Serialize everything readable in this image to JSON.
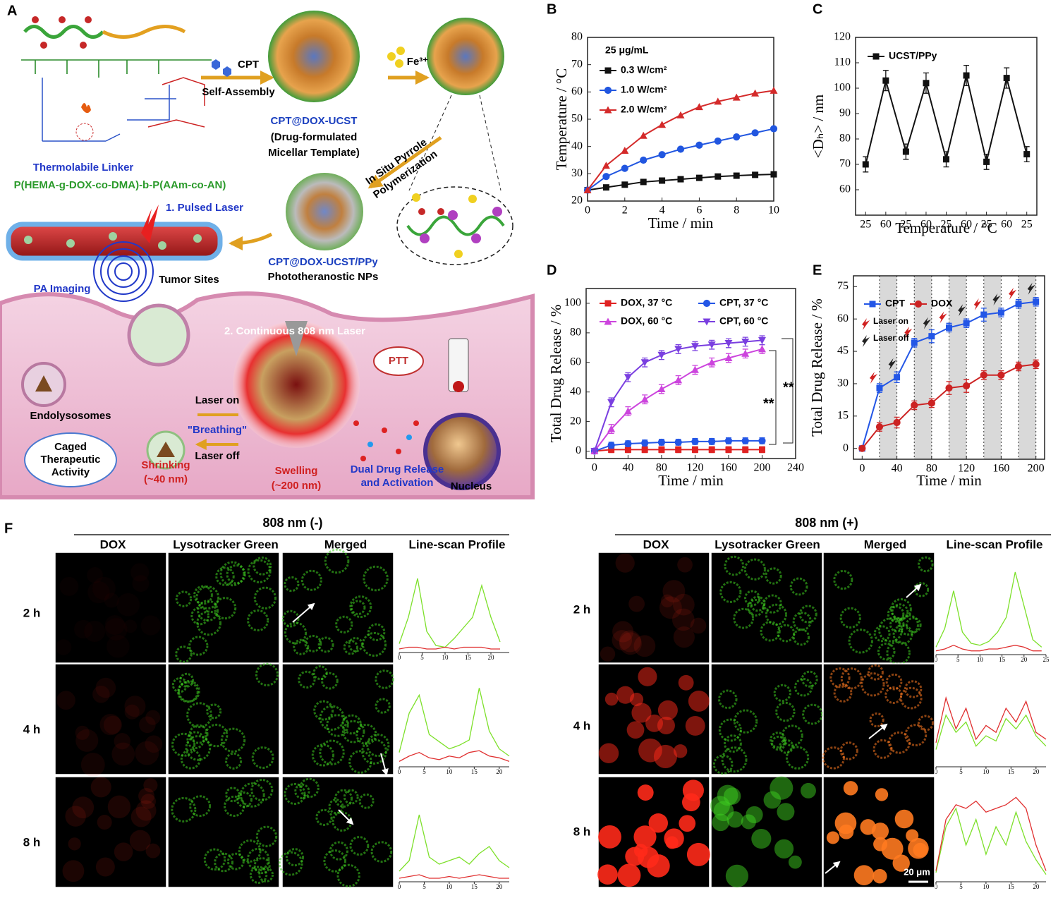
{
  "schematic": {
    "label": "A",
    "cpt": "CPT",
    "self_assembly": "Self-Assembly",
    "fe": "Fe³⁺",
    "micelle": [
      "CPT@DOX-UCST",
      "(Drug-formulated",
      "Micellar Template)"
    ],
    "polymerization": [
      "In Situ Pyrrole",
      "Polymerization"
    ],
    "linker": "Thermolabile Linker",
    "polymer": "P(HEMA-g-DOX-co-DMA)-b-P(AAm-co-AN)",
    "pulsed_laser": "1. Pulsed Laser",
    "nps": [
      "CPT@DOX-UCST/PPy",
      "Phototheranostic  NPs"
    ],
    "pa_imaging": "PA Imaging",
    "tumor_sites": "Tumor Sites",
    "continuous_laser": "2. Continuous  808 nm Laser",
    "ptt": "PTT",
    "endolysosomes": "Endolysosomes",
    "laser_on": "Laser on",
    "breathing": "\"Breathing\"",
    "laser_off": "Laser off",
    "caged": [
      "Caged",
      "Therapeutic",
      "Activity"
    ],
    "shrinking": [
      "Shrinking",
      "(~40 nm)"
    ],
    "swelling": [
      "Swelling",
      "(~200 nm)"
    ],
    "release": [
      "Dual Drug Release",
      "and Activation"
    ],
    "nucleus": "Nucleus"
  },
  "chart_data": [
    {
      "type": "line",
      "label": "B",
      "annotation": "25 μg/mL",
      "x_label": "Time / min",
      "y_label": "Temperature / °C",
      "x": [
        0,
        1,
        2,
        3,
        4,
        5,
        6,
        7,
        8,
        9,
        10
      ],
      "xlim": [
        0,
        10
      ],
      "xticks": [
        0,
        2,
        4,
        6,
        8,
        10
      ],
      "ylim": [
        20,
        80
      ],
      "yticks": [
        20,
        30,
        40,
        50,
        60,
        70,
        80
      ],
      "series": [
        {
          "name": "0.3 W/cm²",
          "color": "#111111",
          "marker": "square",
          "values": [
            24,
            25,
            26,
            27,
            27.5,
            28,
            28.5,
            29,
            29.3,
            29.6,
            29.8
          ]
        },
        {
          "name": "1.0 W/cm²",
          "color": "#2156e0",
          "marker": "circle",
          "values": [
            24,
            29,
            32,
            35,
            37,
            39,
            40.5,
            42,
            43.5,
            45,
            46.5
          ]
        },
        {
          "name": "2.0 W/cm²",
          "color": "#d42a2a",
          "marker": "triangle",
          "values": [
            24,
            33,
            38.5,
            44,
            48,
            51.5,
            54.5,
            56.5,
            58,
            59.5,
            60.5
          ]
        }
      ]
    },
    {
      "type": "line",
      "label": "C",
      "x_label": "Temperature / °C",
      "y_label": "<Dₕ> / nm",
      "categories": [
        "25",
        "60",
        "25",
        "60",
        "25",
        "60",
        "25",
        "60",
        "25"
      ],
      "ylim": [
        50,
        120
      ],
      "yticks": [
        60,
        70,
        80,
        90,
        100,
        110,
        120
      ],
      "series": [
        {
          "name": "UCST/PPy",
          "color": "#111111",
          "marker": "square",
          "values": [
            70,
            103,
            75,
            102,
            72,
            105,
            71,
            104,
            74
          ],
          "errors": [
            3,
            4,
            3,
            4,
            3,
            4,
            3,
            4,
            3
          ]
        }
      ]
    },
    {
      "type": "line",
      "label": "D",
      "x_label": "Time / min",
      "y_label": "Total Drug Release / %",
      "annotations": [
        "**",
        "**"
      ],
      "x": [
        0,
        20,
        40,
        60,
        80,
        100,
        120,
        140,
        160,
        180,
        200
      ],
      "xlim": [
        -10,
        240
      ],
      "xticks": [
        0,
        40,
        80,
        120,
        160,
        200,
        240
      ],
      "ylim": [
        -5,
        110
      ],
      "yticks": [
        0,
        20,
        40,
        60,
        80,
        100
      ],
      "series": [
        {
          "name": "DOX, 37 °C",
          "color": "#e02222",
          "marker": "square",
          "values": [
            0,
            1,
            1,
            1,
            1,
            1,
            1,
            1,
            1,
            1,
            1
          ],
          "errors": [
            0,
            2,
            2,
            2,
            2,
            2,
            2,
            2,
            2,
            2,
            2
          ]
        },
        {
          "name": "CPT,  37 °C",
          "color": "#2356e6",
          "marker": "circle",
          "values": [
            0,
            4,
            5,
            5.5,
            6,
            6,
            6.5,
            6.5,
            7,
            7,
            7
          ],
          "errors": [
            0,
            2,
            2,
            2,
            2,
            2,
            2,
            2,
            2,
            2,
            2
          ]
        },
        {
          "name": "DOX, 60 °C",
          "color": "#cc44dd",
          "marker": "triangle",
          "values": [
            0,
            15,
            27,
            35,
            42,
            48,
            55,
            60,
            63,
            66,
            69
          ],
          "errors": [
            0,
            3,
            3,
            3,
            3,
            3,
            3,
            3,
            3,
            3,
            3
          ]
        },
        {
          "name": "CPT, 60 °C",
          "color": "#7a3fe0",
          "marker": "triangle-down",
          "values": [
            0,
            33,
            50,
            60,
            65,
            69,
            71,
            72,
            73,
            74,
            75
          ],
          "errors": [
            0,
            3,
            3,
            3,
            3,
            3,
            3,
            3,
            3,
            3,
            3
          ]
        }
      ]
    },
    {
      "type": "line",
      "label": "E",
      "x_label": "Time / min",
      "y_label": "Total Drug Release / %",
      "laser_labels": [
        "Laser on",
        "Laser off"
      ],
      "x": [
        0,
        20,
        40,
        60,
        80,
        100,
        120,
        140,
        160,
        180,
        200
      ],
      "xlim": [
        -10,
        210
      ],
      "xticks": [
        0,
        40,
        80,
        120,
        160,
        200
      ],
      "ylim": [
        -5,
        80
      ],
      "yticks": [
        0,
        15,
        30,
        45,
        60,
        75
      ],
      "shaded": [
        [
          20,
          40
        ],
        [
          60,
          80
        ],
        [
          100,
          120
        ],
        [
          140,
          160
        ],
        [
          180,
          200
        ]
      ],
      "series": [
        {
          "name": "CPT",
          "color": "#2356e6",
          "marker": "square",
          "values": [
            0,
            28,
            33,
            49,
            52,
            56,
            58,
            62,
            63,
            67,
            68
          ],
          "errors": [
            0,
            2,
            2.5,
            2,
            3,
            2,
            2,
            3,
            2,
            2,
            2
          ]
        },
        {
          "name": "DOX",
          "color": "#cc2222",
          "marker": "circle",
          "values": [
            0,
            10,
            12,
            20,
            21,
            28,
            29,
            34,
            34,
            38,
            39
          ],
          "errors": [
            0,
            2,
            2.5,
            2,
            2,
            3,
            3,
            2,
            2,
            2,
            2
          ]
        }
      ]
    },
    {
      "type": "line",
      "x": [
        0,
        2,
        4,
        6,
        8,
        10,
        12,
        14,
        16,
        18,
        20,
        22
      ],
      "xlim": [
        0,
        24
      ],
      "xticks": [
        0,
        5,
        10,
        15,
        20
      ],
      "ylim": [
        0,
        50
      ],
      "series": [
        {
          "color": "#7de02a",
          "values": [
            5,
            20,
            42,
            12,
            4,
            3,
            8,
            14,
            20,
            38,
            20,
            6
          ]
        },
        {
          "color": "#e03030",
          "values": [
            2,
            3,
            3,
            2,
            2,
            3,
            2,
            3,
            3,
            3,
            2,
            2
          ]
        }
      ]
    },
    {
      "type": "line",
      "x": [
        0,
        2,
        4,
        6,
        8,
        10,
        12,
        14,
        16,
        18,
        20,
        22
      ],
      "xlim": [
        0,
        22
      ],
      "xticks": [
        0,
        5,
        10,
        15,
        20
      ],
      "ylim": [
        0,
        50
      ],
      "series": [
        {
          "color": "#7de02a",
          "values": [
            8,
            30,
            40,
            18,
            14,
            10,
            12,
            15,
            44,
            20,
            10,
            6
          ]
        },
        {
          "color": "#e03030",
          "values": [
            3,
            6,
            8,
            5,
            4,
            6,
            5,
            8,
            9,
            6,
            5,
            3
          ]
        }
      ]
    },
    {
      "type": "line",
      "x": [
        0,
        2,
        4,
        6,
        8,
        10,
        12,
        14,
        16,
        18,
        20,
        22
      ],
      "xlim": [
        0,
        22
      ],
      "xticks": [
        0,
        5,
        10,
        15,
        20
      ],
      "ylim": [
        0,
        50
      ],
      "series": [
        {
          "color": "#7de02a",
          "values": [
            6,
            12,
            38,
            14,
            10,
            12,
            14,
            10,
            16,
            20,
            12,
            8
          ]
        },
        {
          "color": "#e03030",
          "values": [
            2,
            3,
            4,
            2,
            2,
            3,
            2,
            3,
            4,
            3,
            2,
            2
          ]
        }
      ]
    },
    {
      "type": "line",
      "x": [
        0,
        2,
        4,
        6,
        8,
        10,
        12,
        14,
        16,
        18,
        20,
        22,
        24
      ],
      "xlim": [
        0,
        25
      ],
      "xticks": [
        0,
        5,
        10,
        15,
        20,
        25
      ],
      "ylim": [
        0,
        50
      ],
      "series": [
        {
          "color": "#7de02a",
          "values": [
            4,
            14,
            34,
            12,
            6,
            5,
            7,
            12,
            20,
            44,
            26,
            8,
            4
          ]
        },
        {
          "color": "#e03030",
          "values": [
            2,
            3,
            5,
            3,
            2,
            2,
            3,
            3,
            4,
            5,
            4,
            2,
            2
          ]
        }
      ]
    },
    {
      "type": "line",
      "x": [
        0,
        2,
        4,
        6,
        8,
        10,
        12,
        14,
        16,
        18,
        20,
        22
      ],
      "xlim": [
        0,
        22
      ],
      "xticks": [
        0,
        5,
        10,
        15,
        20
      ],
      "ylim": [
        0,
        50
      ],
      "series": [
        {
          "color": "#7de02a",
          "values": [
            10,
            30,
            20,
            26,
            12,
            18,
            15,
            28,
            22,
            30,
            18,
            12
          ]
        },
        {
          "color": "#e03030",
          "values": [
            14,
            40,
            22,
            34,
            16,
            24,
            20,
            34,
            26,
            38,
            20,
            16
          ]
        }
      ]
    },
    {
      "type": "line",
      "x": [
        0,
        2,
        4,
        6,
        8,
        10,
        12,
        14,
        16,
        18,
        20,
        22
      ],
      "xlim": [
        0,
        22
      ],
      "xticks": [
        0,
        5,
        10,
        15,
        20
      ],
      "ylim": [
        0,
        50
      ],
      "series": [
        {
          "color": "#7de02a",
          "values": [
            5,
            30,
            40,
            20,
            34,
            15,
            30,
            20,
            38,
            22,
            12,
            4
          ]
        },
        {
          "color": "#e03030",
          "values": [
            6,
            34,
            42,
            40,
            44,
            38,
            40,
            42,
            46,
            40,
            20,
            6
          ]
        }
      ]
    }
  ],
  "panel_f": {
    "label": "F",
    "scale_bar": "20 μm",
    "groups": [
      {
        "title": "808 nm (-)",
        "columns": [
          "DOX",
          "Lysotracker Green",
          "Merged",
          "Line-scan Profile"
        ],
        "rows": [
          "2 h",
          "4 h",
          "8 h"
        ]
      },
      {
        "title": "808 nm (+)",
        "columns": [
          "DOX",
          "Lysotracker Green",
          "Merged",
          "Line-scan Profile"
        ],
        "rows": [
          "2 h",
          "4 h",
          "8 h"
        ]
      }
    ]
  }
}
